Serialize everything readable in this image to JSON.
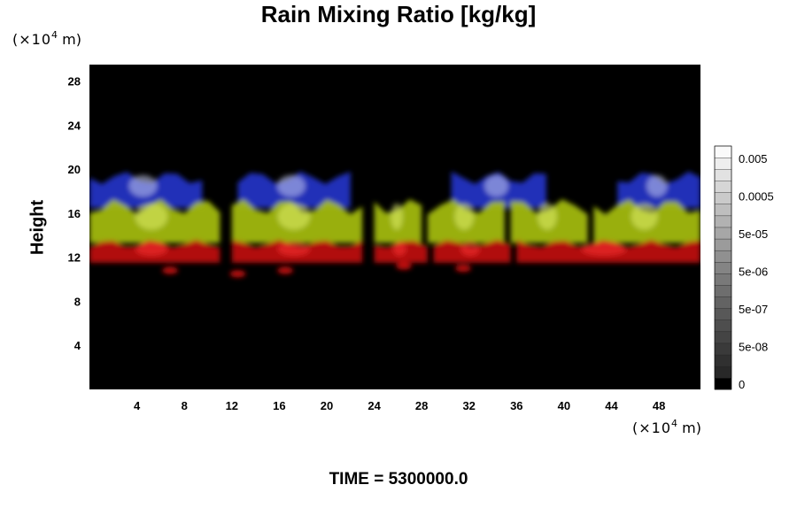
{
  "chart_data": {
    "type": "heatmap",
    "title": "Rain Mixing Ratio [kg/kg]",
    "ylabel": "Height",
    "xunit": {
      "prefix": "(×10",
      "exp": "4",
      "suffix": " m)"
    },
    "yunit": {
      "prefix": "(×10",
      "exp": "4",
      "suffix": " m)"
    },
    "xlim": [
      0,
      51.5
    ],
    "ylim": [
      0,
      29.5
    ],
    "x_ticks": [
      4,
      8,
      12,
      16,
      20,
      24,
      28,
      32,
      36,
      40,
      44,
      48
    ],
    "y_ticks": [
      4,
      8,
      12,
      16,
      20,
      24,
      28
    ],
    "background_color": "#000000",
    "colorbar": {
      "labels": [
        "0.005",
        "0.0005",
        "5e-05",
        "5e-06",
        "5e-07",
        "5e-08",
        "0"
      ],
      "levels": 21
    },
    "layers": [
      {
        "color": "#2233c8",
        "highlight": "#c8cdf0",
        "y_bottom": 16.5,
        "y_top": 19.8,
        "segments": [
          [
            0,
            9.5
          ],
          [
            12.5,
            22
          ],
          [
            30.5,
            38.5
          ],
          [
            44.5,
            51.5
          ]
        ]
      },
      {
        "color": "#a6be12",
        "highlight": "#e2f070",
        "y_bottom": 13.3,
        "y_top": 17.3,
        "segments": [
          [
            0,
            11
          ],
          [
            12,
            23
          ],
          [
            24,
            28
          ],
          [
            28.5,
            35
          ],
          [
            35.5,
            42
          ],
          [
            42.5,
            51.5
          ]
        ]
      },
      {
        "color": "#c01010",
        "highlight": "#ff3030",
        "y_bottom": 11.5,
        "y_top": 13.6,
        "segments": [
          [
            0,
            11
          ],
          [
            12,
            23
          ],
          [
            24,
            28.5
          ],
          [
            29,
            35.5
          ],
          [
            36,
            51.5
          ]
        ]
      }
    ],
    "scattered_cells": [
      {
        "x": 6.8,
        "y": 10.8,
        "color": "#c01010"
      },
      {
        "x": 12.5,
        "y": 10.5,
        "color": "#c01010"
      },
      {
        "x": 16.5,
        "y": 10.8,
        "color": "#c01010"
      },
      {
        "x": 26.5,
        "y": 11.2,
        "color": "#c01010"
      },
      {
        "x": 31.5,
        "y": 11.0,
        "color": "#c01010"
      }
    ]
  },
  "footer": {
    "time_label": "TIME = 5300000.0"
  }
}
